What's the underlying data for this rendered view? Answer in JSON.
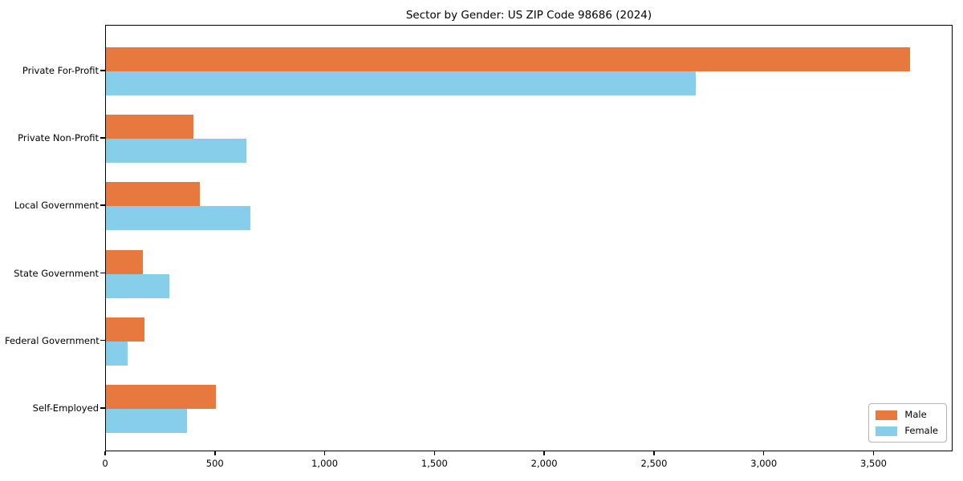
{
  "chart_data": {
    "type": "bar",
    "orientation": "horizontal",
    "title": "Sector by Gender: US ZIP Code 98686 (2024)",
    "xlabel": "",
    "ylabel": "",
    "categories": [
      "Private For-Profit",
      "Private Non-Profit",
      "Local Government",
      "State Government",
      "Federal Government",
      "Self-Employed"
    ],
    "series": [
      {
        "name": "Male",
        "color": "#e8793e",
        "values": [
          3670,
          400,
          430,
          170,
          175,
          500
        ]
      },
      {
        "name": "Female",
        "color": "#87ceeb",
        "values": [
          2690,
          640,
          660,
          290,
          100,
          370
        ]
      }
    ],
    "xlim": [
      0,
      3860
    ],
    "xticks": [
      0,
      500,
      1000,
      1500,
      2000,
      2500,
      3000,
      3500
    ],
    "xtick_labels": [
      "0",
      "500",
      "1,000",
      "1,500",
      "2,000",
      "2,500",
      "3,000",
      "3,500"
    ],
    "legend": {
      "position": "lower right",
      "entries": [
        "Male",
        "Female"
      ]
    },
    "grid": false,
    "background": "#ffffff",
    "spine_color": "#000000"
  }
}
